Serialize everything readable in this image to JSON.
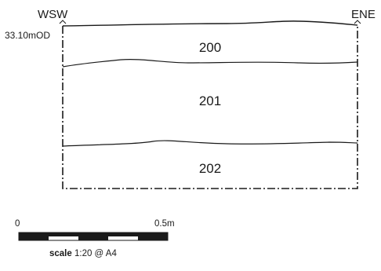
{
  "section": {
    "orientation_left": "WSW",
    "orientation_right": "ENE",
    "datum_level": "33.10mOD",
    "contexts": [
      {
        "id": "200"
      },
      {
        "id": "201"
      },
      {
        "id": "202"
      }
    ]
  },
  "scale_bar": {
    "start_label": "0",
    "end_label": "0.5m",
    "caption_bold": "scale",
    "caption_rest": " 1:20 @ A4"
  }
}
